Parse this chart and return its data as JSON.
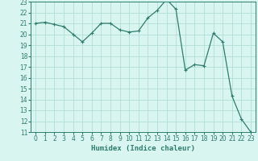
{
  "title": "",
  "xlabel": "Humidex (Indice chaleur)",
  "ylabel": "",
  "x_values": [
    0,
    1,
    2,
    3,
    4,
    5,
    6,
    7,
    8,
    9,
    10,
    11,
    12,
    13,
    14,
    15,
    16,
    17,
    18,
    19,
    20,
    21,
    22,
    23
  ],
  "y_values": [
    21.0,
    21.1,
    20.9,
    20.7,
    20.0,
    19.3,
    20.1,
    21.0,
    21.0,
    20.4,
    20.2,
    20.3,
    21.5,
    22.2,
    23.2,
    22.3,
    16.7,
    17.2,
    17.1,
    20.1,
    19.3,
    14.3,
    12.2,
    11.0
  ],
  "line_color": "#2e7d6e",
  "marker": "+",
  "marker_size": 3,
  "marker_linewidth": 0.8,
  "line_width": 0.9,
  "bg_color": "#d9f5ef",
  "grid_color": "#aad9d0",
  "ylim": [
    11,
    23
  ],
  "xlim": [
    -0.5,
    23.5
  ],
  "yticks": [
    11,
    12,
    13,
    14,
    15,
    16,
    17,
    18,
    19,
    20,
    21,
    22,
    23
  ],
  "xticks": [
    0,
    1,
    2,
    3,
    4,
    5,
    6,
    7,
    8,
    9,
    10,
    11,
    12,
    13,
    14,
    15,
    16,
    17,
    18,
    19,
    20,
    21,
    22,
    23
  ],
  "tick_fontsize": 5.5,
  "label_fontsize": 6.5,
  "label_fontweight": "bold"
}
